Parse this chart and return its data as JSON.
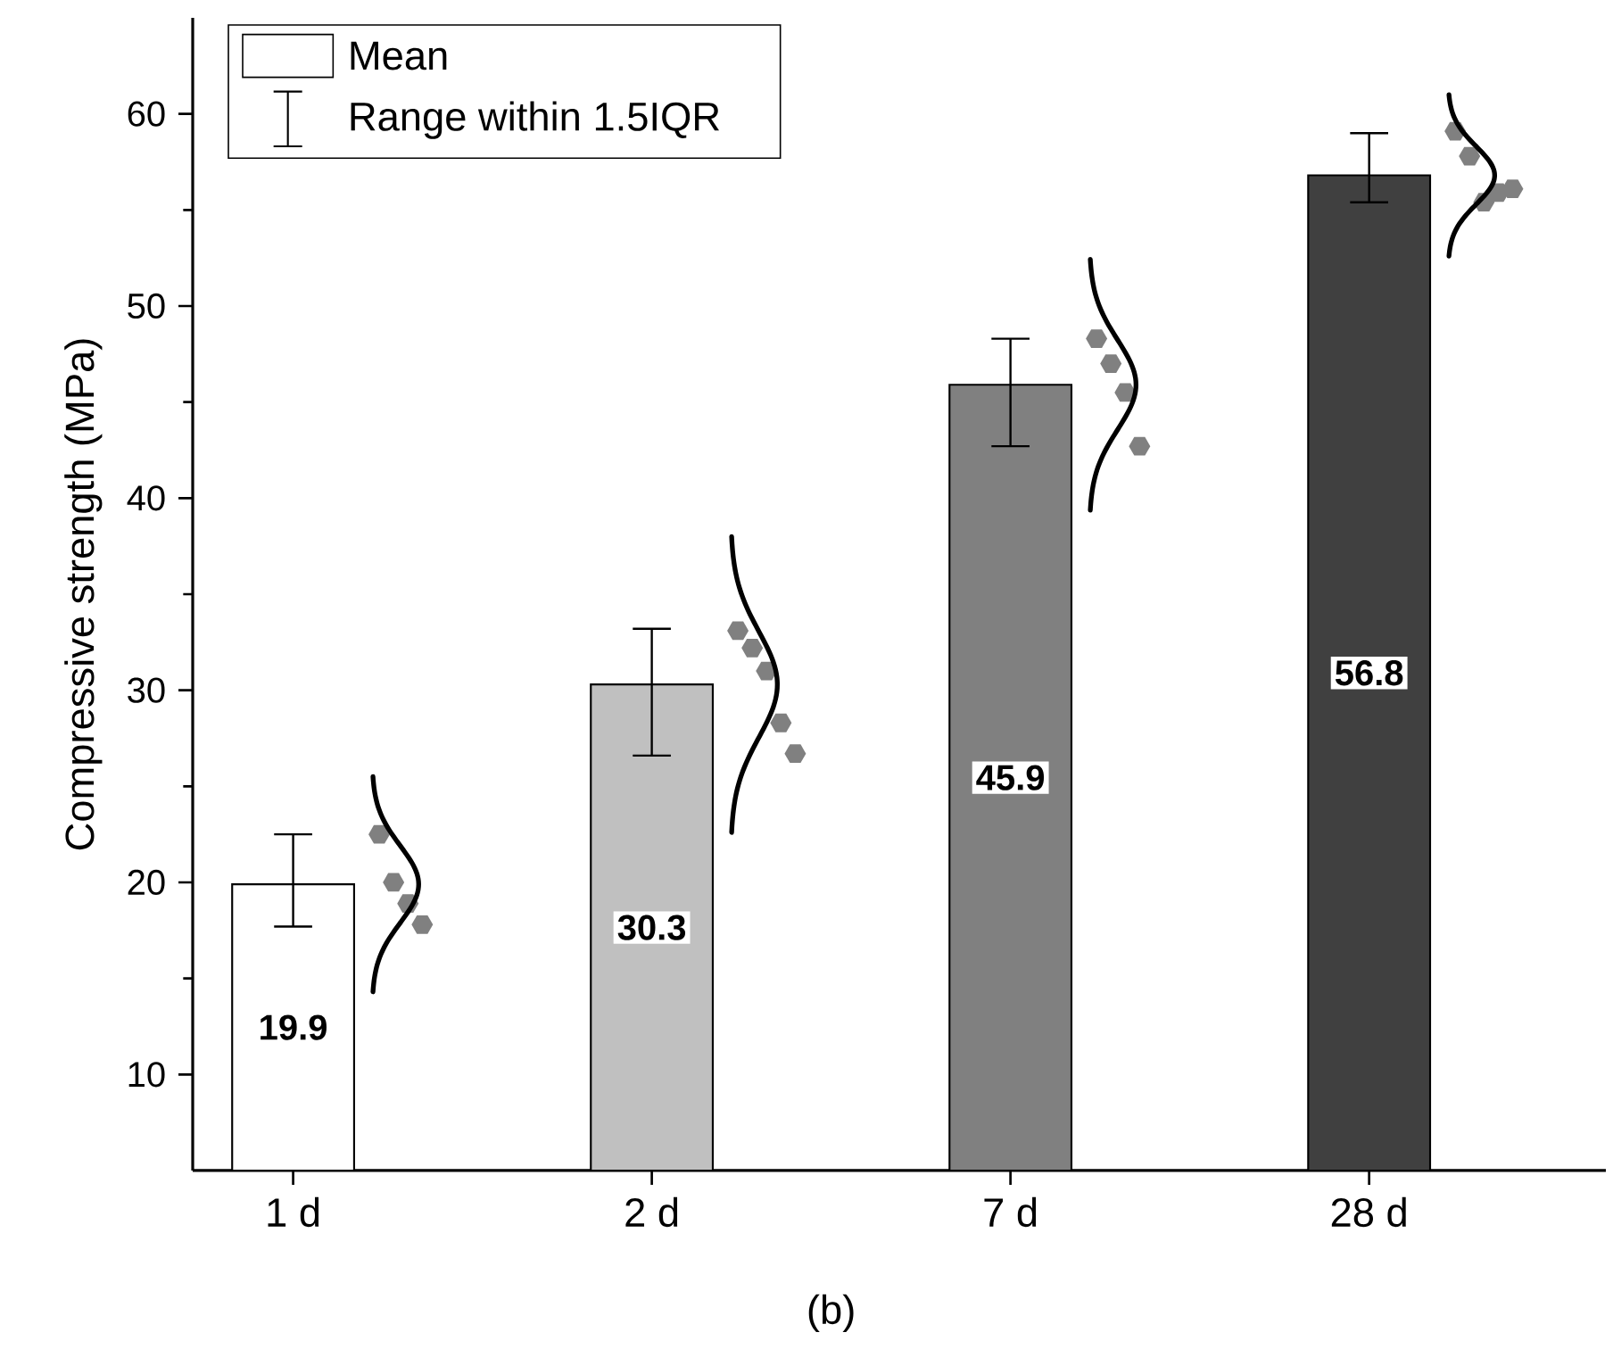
{
  "chart_data": {
    "type": "bar",
    "ylabel": "Compressive strength (MPa)",
    "categories": [
      "1 d",
      "2 d",
      "7 d",
      "28 d"
    ],
    "series": [
      {
        "name": "Mean",
        "colors": [
          "#ffffff",
          "#c0c0c0",
          "#808080",
          "#404040"
        ],
        "values": [
          19.9,
          30.3,
          45.9,
          56.8
        ],
        "value_labels": [
          "19.9",
          "30.3",
          "45.9",
          "56.8"
        ],
        "errors": [
          [
            17.7,
            22.5
          ],
          [
            26.6,
            33.2
          ],
          [
            42.7,
            48.3
          ],
          [
            55.4,
            59.0
          ]
        ]
      },
      {
        "type": "scatter",
        "color": "#808080",
        "x": [
          "1 d",
          "1 d",
          "1 d",
          "1 d",
          "2 d",
          "2 d",
          "2 d",
          "2 d",
          "2 d",
          "7 d",
          "7 d",
          "7 d",
          "7 d",
          "28 d",
          "28 d",
          "28 d",
          "28 d",
          "28 d"
        ],
        "values": [
          22.5,
          20.0,
          18.9,
          17.8,
          33.1,
          32.2,
          31.0,
          28.3,
          26.7,
          48.3,
          47.0,
          45.5,
          42.7,
          59.1,
          57.8,
          55.4,
          55.9,
          56.1
        ]
      }
    ],
    "ylim": [
      5,
      65
    ],
    "yticks": [
      10,
      20,
      30,
      40,
      50,
      60
    ],
    "legend": "top left",
    "grid": false,
    "annotations": [
      "Range within 1.5IQR",
      "(b)"
    ]
  }
}
